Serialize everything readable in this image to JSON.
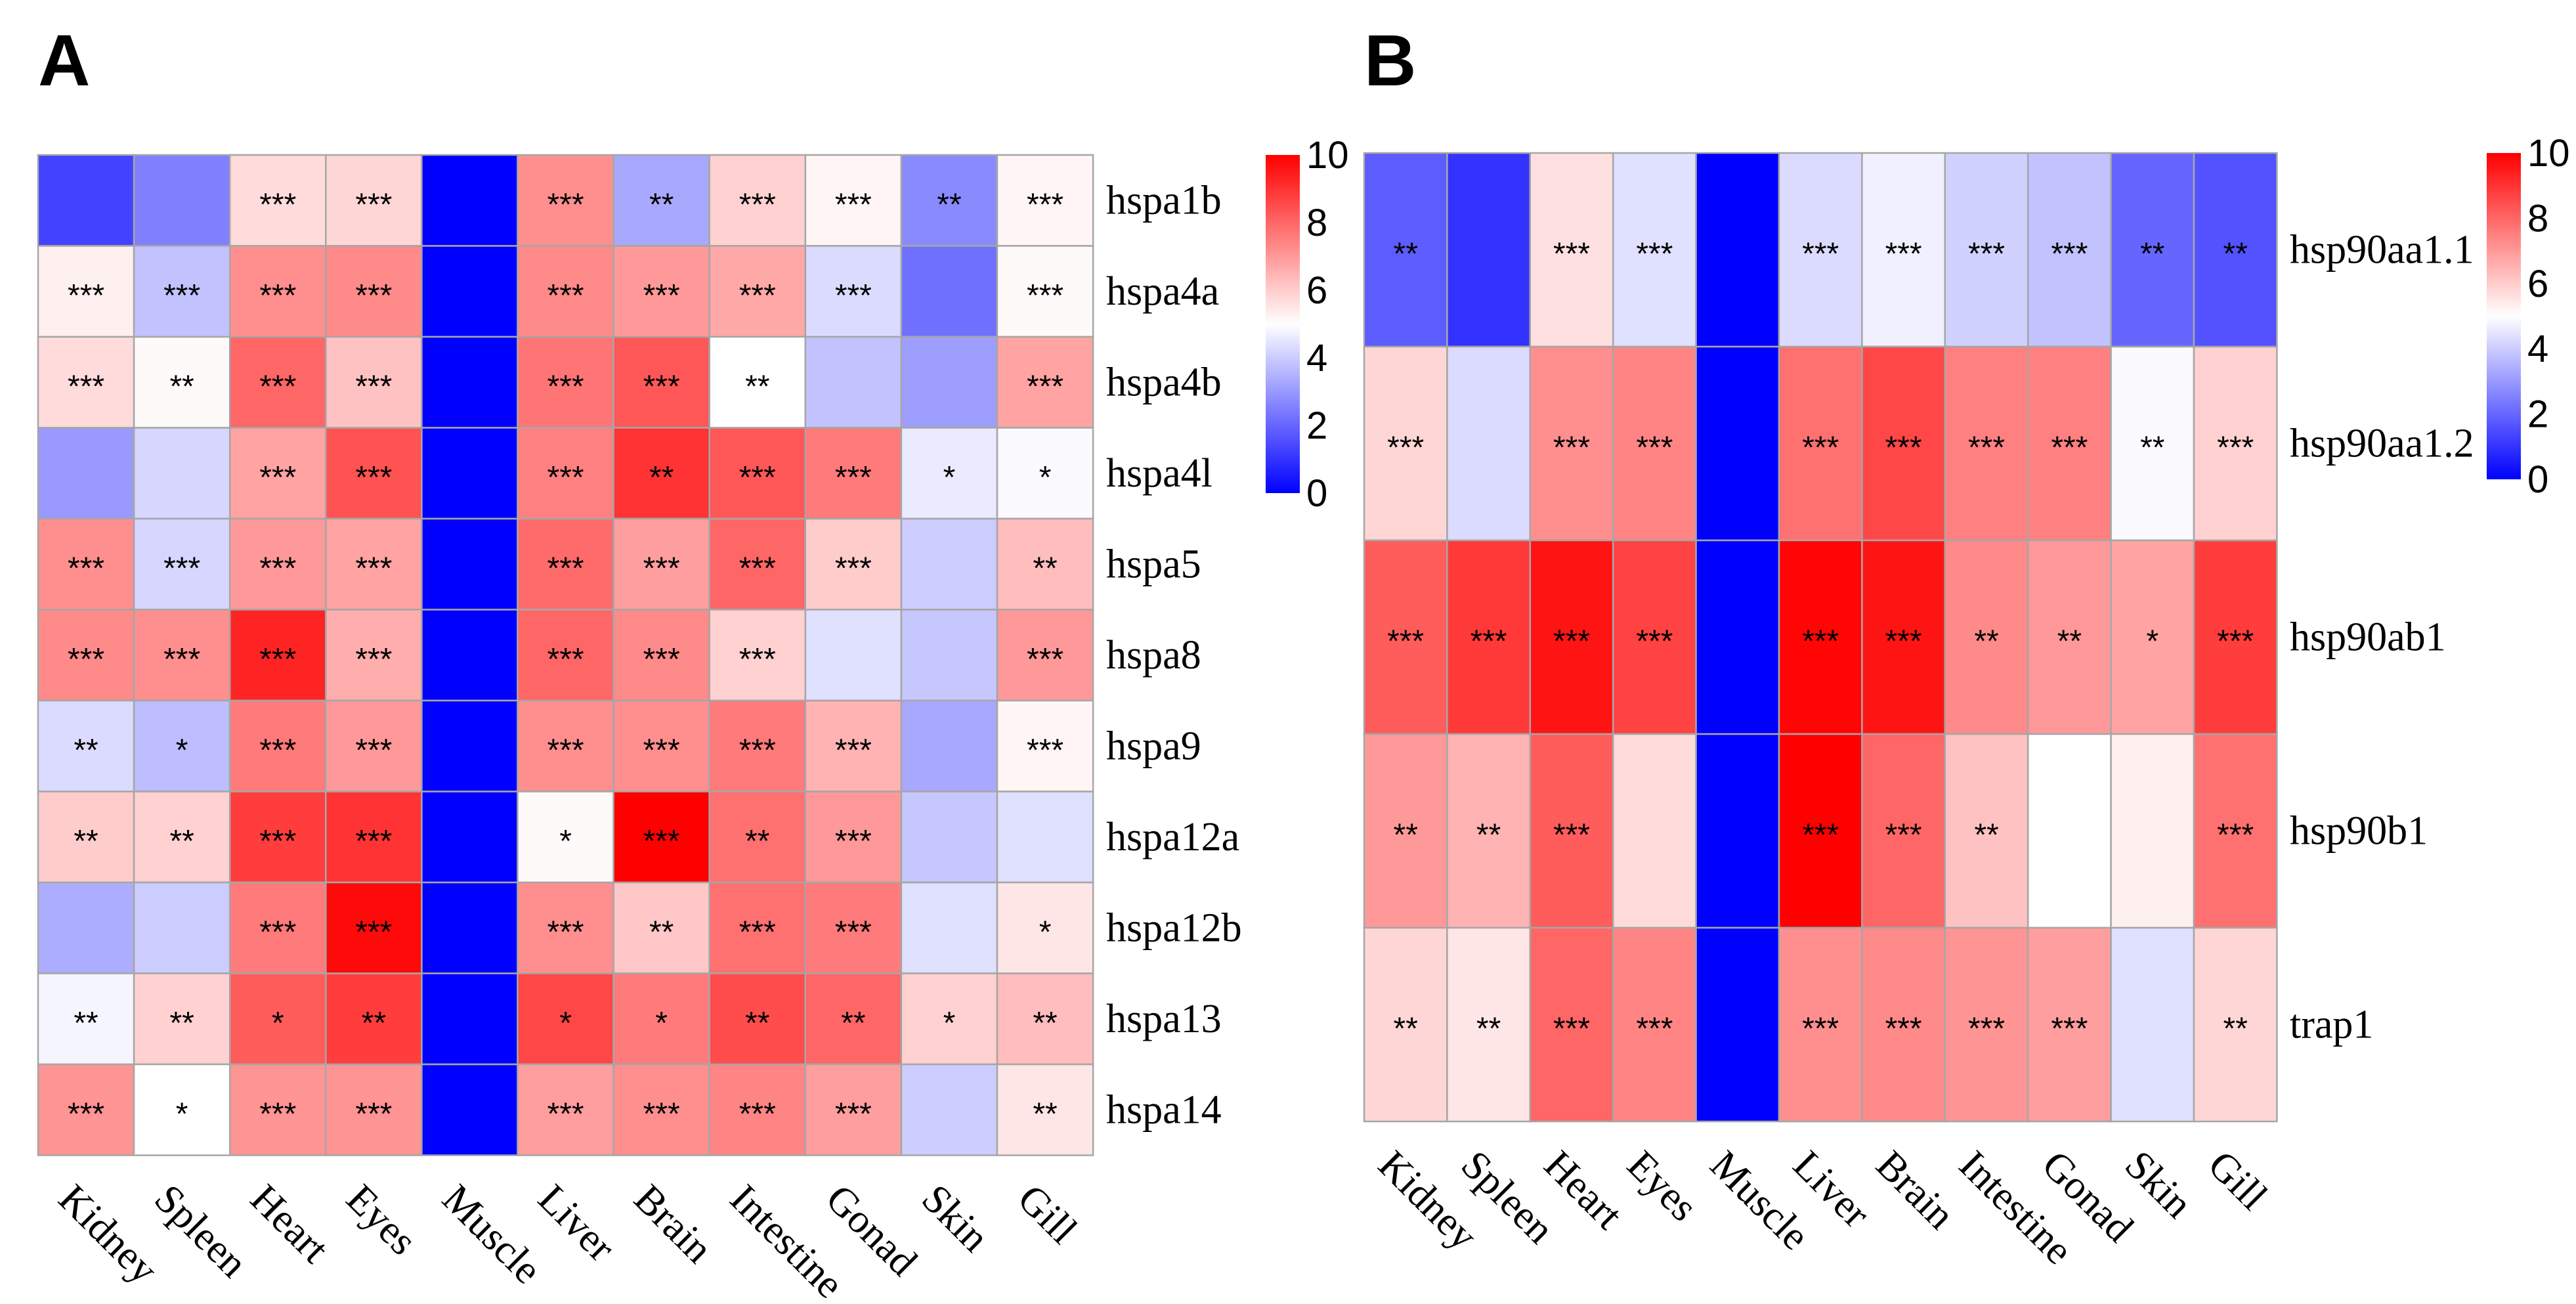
{
  "colorscale": {
    "low": "#0000ff",
    "mid": "#ffffff",
    "high": "#ff0000",
    "min": 0,
    "mid_value": 5,
    "max": 10
  },
  "colorbar_ticks": [
    "0",
    "2",
    "4",
    "6",
    "8",
    "10"
  ],
  "chart_data": [
    {
      "type": "heatmap",
      "panel": "A",
      "title": "A",
      "columns": [
        "Kidney",
        "Spleen",
        "Heart",
        "Eyes",
        "Muscle",
        "Liver",
        "Brain",
        "Intestine",
        "Gonad",
        "Skin",
        "Gill"
      ],
      "rows": [
        "hspa1b",
        "hspa4a",
        "hspa4b",
        "hspa4l",
        "hspa5",
        "hspa8",
        "hspa9",
        "hspa12a",
        "hspa12b",
        "hspa13",
        "hspa14"
      ],
      "values": [
        [
          1.3,
          2.5,
          5.7,
          5.8,
          0,
          7.2,
          3.3,
          5.9,
          5.2,
          2.7,
          5.2
        ],
        [
          5.3,
          3.8,
          7.2,
          7.3,
          0,
          7.3,
          7.0,
          6.7,
          4.3,
          2.2,
          5.1
        ],
        [
          5.7,
          5.1,
          8.0,
          6.2,
          0,
          7.7,
          8.3,
          5.0,
          3.8,
          3.1,
          6.8
        ],
        [
          3.0,
          4.2,
          6.8,
          8.4,
          0,
          7.5,
          9.0,
          8.3,
          7.6,
          4.6,
          4.9
        ],
        [
          7.2,
          4.2,
          7.0,
          6.8,
          0,
          7.9,
          6.9,
          8.0,
          6.0,
          4.0,
          6.3
        ],
        [
          7.3,
          7.2,
          9.3,
          6.6,
          0,
          8.0,
          7.3,
          5.9,
          4.4,
          3.9,
          7.0
        ],
        [
          4.3,
          3.7,
          7.6,
          7.0,
          0,
          7.2,
          7.2,
          7.6,
          6.5,
          3.3,
          5.2
        ],
        [
          6.0,
          5.9,
          8.8,
          9.0,
          0,
          5.1,
          10.0,
          7.8,
          7.0,
          3.9,
          4.4
        ],
        [
          3.4,
          4.0,
          7.6,
          9.8,
          0,
          7.2,
          6.1,
          7.8,
          7.6,
          4.4,
          5.5
        ],
        [
          4.8,
          5.9,
          8.2,
          8.8,
          0,
          8.6,
          7.6,
          8.5,
          8.0,
          5.9,
          6.3
        ],
        [
          7.1,
          5.0,
          7.1,
          7.1,
          0,
          6.9,
          7.2,
          7.4,
          6.9,
          4.0,
          5.5
        ]
      ],
      "annotations": [
        [
          "",
          "",
          "***",
          "***",
          "",
          "***",
          "**",
          "***",
          "***",
          "**",
          "***"
        ],
        [
          "***",
          "***",
          "***",
          "***",
          "",
          "***",
          "***",
          "***",
          "***",
          "",
          "***"
        ],
        [
          "***",
          "**",
          "***",
          "***",
          "",
          "***",
          "***",
          "**",
          "",
          "",
          "***"
        ],
        [
          "",
          "",
          "***",
          "***",
          "",
          "***",
          "**",
          "***",
          "***",
          "*",
          "*"
        ],
        [
          "***",
          "***",
          "***",
          "***",
          "",
          "***",
          "***",
          "***",
          "***",
          "",
          "**"
        ],
        [
          "***",
          "***",
          "***",
          "***",
          "",
          "***",
          "***",
          "***",
          "",
          "",
          "***"
        ],
        [
          "**",
          "*",
          "***",
          "***",
          "",
          "***",
          "***",
          "***",
          "***",
          "",
          "***"
        ],
        [
          "**",
          "**",
          "***",
          "***",
          "",
          "*",
          "***",
          "**",
          "***",
          "",
          ""
        ],
        [
          "",
          "",
          "***",
          "***",
          "",
          "***",
          "**",
          "***",
          "***",
          "",
          "*"
        ],
        [
          "**",
          "**",
          "*",
          "**",
          "",
          "*",
          "*",
          "**",
          "**",
          "*",
          "**"
        ],
        [
          "***",
          "*",
          "***",
          "***",
          "",
          "***",
          "***",
          "***",
          "***",
          "",
          "**"
        ]
      ],
      "color_range": [
        0,
        10
      ]
    },
    {
      "type": "heatmap",
      "panel": "B",
      "title": "B",
      "columns": [
        "Kidney",
        "Spleen",
        "Heart",
        "Eyes",
        "Muscle",
        "Liver",
        "Brain",
        "Intestine",
        "Gonad",
        "Skin",
        "Gill"
      ],
      "rows": [
        "hsp90aa1.1",
        "hsp90aa1.2",
        "hsp90ab1",
        "hsp90b1",
        "trap1"
      ],
      "values": [
        [
          1.8,
          1.0,
          5.6,
          4.4,
          0,
          4.3,
          4.7,
          4.1,
          3.8,
          2.0,
          1.6
        ],
        [
          5.8,
          4.3,
          7.2,
          7.4,
          0,
          7.8,
          8.6,
          7.5,
          7.5,
          4.9,
          5.9
        ],
        [
          8.2,
          8.9,
          9.6,
          8.7,
          0,
          9.9,
          9.6,
          7.3,
          7.0,
          6.8,
          8.8
        ],
        [
          7.0,
          6.5,
          8.2,
          5.7,
          0,
          10.0,
          8.0,
          6.2,
          5.0,
          5.3,
          7.8
        ],
        [
          5.8,
          5.5,
          8.0,
          7.4,
          0,
          7.2,
          7.3,
          7.1,
          6.9,
          4.4,
          5.8
        ]
      ],
      "annotations": [
        [
          "**",
          "",
          "***",
          "***",
          "",
          "***",
          "***",
          "***",
          "***",
          "**",
          "**"
        ],
        [
          "***",
          "",
          "***",
          "***",
          "",
          "***",
          "***",
          "***",
          "***",
          "**",
          "***"
        ],
        [
          "***",
          "***",
          "***",
          "***",
          "",
          "***",
          "***",
          "**",
          "**",
          "*",
          "***"
        ],
        [
          "**",
          "**",
          "***",
          "",
          "",
          "***",
          "***",
          "**",
          "",
          "",
          "***"
        ],
        [
          "**",
          "**",
          "***",
          "***",
          "",
          "***",
          "***",
          "***",
          "***",
          "",
          "**"
        ]
      ],
      "color_range": [
        0,
        10
      ]
    }
  ]
}
